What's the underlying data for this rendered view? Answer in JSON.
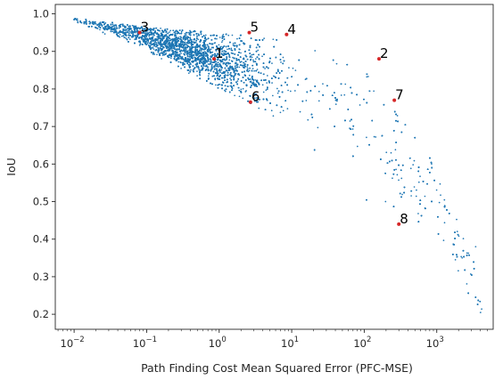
{
  "chart_data": {
    "type": "scatter",
    "title": "",
    "xlabel": "Path Finding Cost Mean Squared Error (PFC-MSE)",
    "ylabel": "IoU",
    "xscale": "log",
    "xlim": [
      0.0055,
      6000
    ],
    "ylim": [
      0.16,
      1.025
    ],
    "x_ticks": [
      0.01,
      0.1,
      1,
      10,
      100,
      1000
    ],
    "x_tick_labels": [
      {
        "base": "10",
        "exp": "−2"
      },
      {
        "base": "10",
        "exp": "−1"
      },
      {
        "base": "10",
        "exp": "0"
      },
      {
        "base": "10",
        "exp": "1"
      },
      {
        "base": "10",
        "exp": "2"
      },
      {
        "base": "10",
        "exp": "3"
      }
    ],
    "y_ticks": [
      0.2,
      0.3,
      0.4,
      0.5,
      0.6,
      0.7,
      0.8,
      0.9,
      1.0
    ],
    "y_tick_labels": [
      "0.2",
      "0.3",
      "0.4",
      "0.5",
      "0.6",
      "0.7",
      "0.8",
      "0.9",
      "1.0"
    ],
    "grid": false,
    "legend": "none",
    "colors": {
      "points": "#1f77b4",
      "highlight": "#d62728",
      "axis": "#262626"
    },
    "annotated_points": [
      {
        "label": "1",
        "x": 0.85,
        "y": 0.88
      },
      {
        "label": "2",
        "x": 160,
        "y": 0.88
      },
      {
        "label": "3",
        "x": 0.08,
        "y": 0.95
      },
      {
        "label": "4",
        "x": 8.5,
        "y": 0.945
      },
      {
        "label": "5",
        "x": 2.6,
        "y": 0.95
      },
      {
        "label": "6",
        "x": 2.7,
        "y": 0.765
      },
      {
        "label": "7",
        "x": 260,
        "y": 0.77
      },
      {
        "label": "8",
        "x": 300,
        "y": 0.44
      }
    ],
    "point_cloud": {
      "count": 9000,
      "upper_envelope": [
        [
          0.01,
          0.99
        ],
        [
          0.1,
          0.965
        ],
        [
          1,
          0.95
        ],
        [
          10,
          0.93
        ],
        [
          100,
          0.85
        ],
        [
          1000,
          0.6
        ],
        [
          3500,
          0.38
        ],
        [
          4200,
          0.22
        ]
      ],
      "center_line": [
        [
          0.01,
          0.985
        ],
        [
          0.1,
          0.94
        ],
        [
          1,
          0.875
        ],
        [
          10,
          0.82
        ],
        [
          100,
          0.72
        ],
        [
          1000,
          0.5
        ],
        [
          3500,
          0.28
        ],
        [
          4200,
          0.2
        ]
      ],
      "lower_envelope": [
        [
          0.01,
          0.98
        ],
        [
          0.1,
          0.9
        ],
        [
          1,
          0.8
        ],
        [
          10,
          0.7
        ],
        [
          100,
          0.5
        ],
        [
          1000,
          0.36
        ],
        [
          3500,
          0.2
        ],
        [
          4200,
          0.18
        ]
      ]
    }
  }
}
